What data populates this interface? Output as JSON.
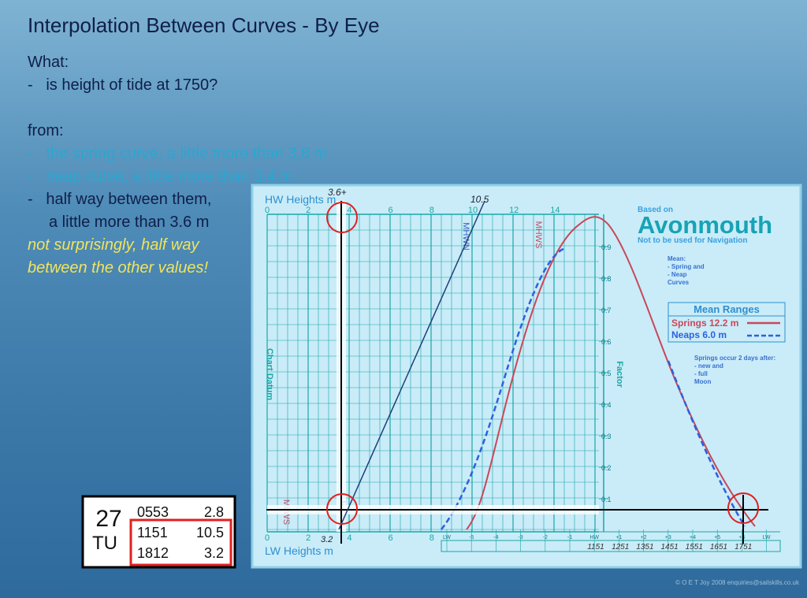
{
  "title": "Interpolation Between Curves - By Eye",
  "body": {
    "what": "What:",
    "question": "-   is height of tide at 1750?",
    "from": "from:",
    "spring": "-   the spring curve, a little more than 3.8 m",
    "neap": "-   neap curve, a little more than 3.4 m",
    "half": "-   half way between them,",
    "half_value": "a little more than 3.6 m",
    "note": [
      "not surprisingly, half way",
      "between the other values!"
    ]
  },
  "tide_table": {
    "day": "27",
    "weekday": "TU",
    "rows": [
      [
        "0553",
        "2.8"
      ],
      [
        "1151",
        "10.5"
      ],
      [
        "1812",
        "3.2"
      ]
    ]
  },
  "diagram": {
    "hw_heights_label": "HW Heights m",
    "hw_ticks": [
      "0",
      "2",
      "4",
      "6",
      "8",
      "10",
      "12",
      "14"
    ],
    "lw_heights_label": "LW Heights m",
    "lw_ticks": [
      "0",
      "2",
      "4",
      "6",
      "8"
    ],
    "hw_note": "3.6+",
    "hw_mark": "10.5",
    "lw_mark": "3.2",
    "mhwn": "MHWN",
    "mhws": "MHWS",
    "mlws": "MLWS",
    "mlwn": "MLWN",
    "chart_datum": "Chart Datum",
    "factor": "Factor",
    "factor_ticks": [
      "0.1",
      "0.2",
      "0.3",
      "0.4",
      "0.5",
      "0.6",
      "0.7",
      "0.8",
      "0.9"
    ],
    "time_ticks": [
      "LW",
      "-5",
      "-4",
      "-3",
      "-2",
      "-1",
      "HW",
      "+1",
      "+2",
      "+3",
      "+4",
      "+5",
      "+6",
      "LW"
    ],
    "times": [
      "1151",
      "1251",
      "1351",
      "1451",
      "1551",
      "1651",
      "1751"
    ],
    "based_on": "Based on",
    "port": "Avonmouth",
    "warning": "Not to be used for Navigation",
    "mean_notes": [
      "Mean:",
      "-  Spring and",
      "-  Neap",
      "Curves"
    ],
    "ranges_title": "Mean Ranges",
    "springs_range": "Springs 12.2 m",
    "neaps_range": "Neaps    6.0 m",
    "springs_note": "Springs occur 2 days after:",
    "moon_notes": [
      "-  new and",
      "-  full",
      "Moon"
    ]
  },
  "copyright": "© O E T Joy 2008 enquiries@sailskills.co.uk"
}
